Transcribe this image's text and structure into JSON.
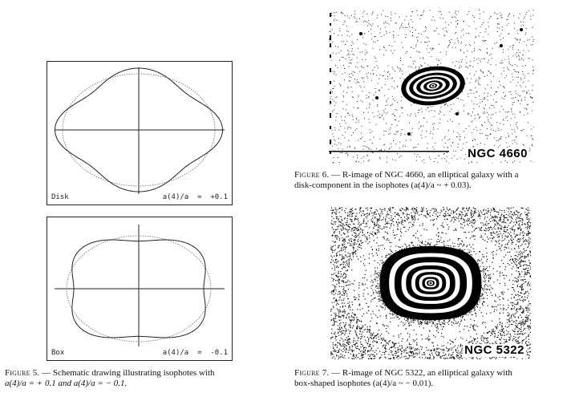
{
  "figure5": {
    "panel_top": {
      "name_label": "Disk",
      "value_label": "a(4)/a  =  +0.1",
      "a4": 0.1
    },
    "panel_bottom": {
      "name_label": "Box",
      "value_label": "a(4)/a  =  -0.1",
      "a4": -0.1
    },
    "caption_head": "Figure 5.",
    "caption_text": " — Schematic drawing illustrating isophotes with",
    "caption_line2": "a(4)/a = + 0.1 and a(4)/a = − 0.1."
  },
  "figure6": {
    "galaxy_label": "NGC 4660",
    "caption_head": "Figure 6.",
    "caption_text": " — R-image of NGC 4660, an elliptical galaxy with a",
    "caption_line2": "disk-component in the isophotes (a(4)/a ~ + 0.03)."
  },
  "figure7": {
    "galaxy_label": "NGC 5322",
    "caption_head": "Figure 7.",
    "caption_text": " — R-image of NGC 5322, an elliptical galaxy with",
    "caption_line2": "box-shaped isophotes (a(4)/a ~ − 0.01)."
  }
}
